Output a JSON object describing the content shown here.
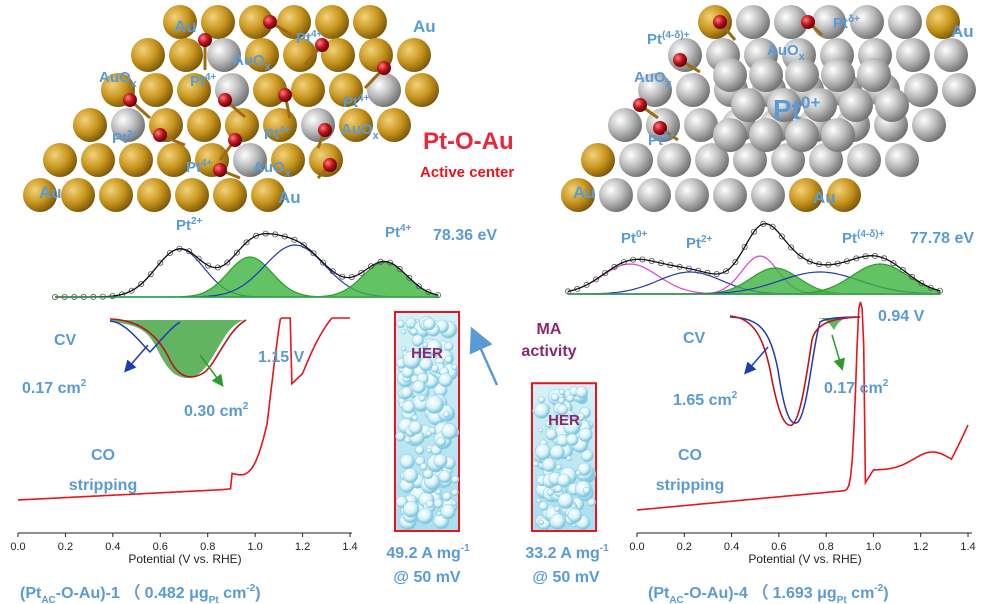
{
  "colors": {
    "gold": "#c8961e",
    "silver": "#b7b7b7",
    "oxygen": "#c0141c",
    "label_blue": "#5b9bd5",
    "accent_red": "#e8283c",
    "fit_green": "#2e9a2e",
    "fit_blue": "#1f3ab5",
    "fit_magenta": "#e040d0",
    "curve_red": "#e8141c"
  },
  "left": {
    "ions": {
      "au_tl": "Au",
      "au_tr": "Au",
      "au_bl": "Au",
      "au_bm": "Au",
      "pt4_a": "Pt",
      "pt4_a_sup": "4+",
      "pt4_b": "Pt",
      "pt4_b_sup": "4+",
      "pt4_c": "Pt",
      "pt4_c_sup": "4+",
      "pt4_d": "Pt",
      "pt4_d_sup": "4+",
      "pt4_e": "Pt",
      "pt4_e_sup": "4+",
      "pt2_a": "Pt",
      "pt2_a_sup": "2+",
      "auox_a": "AuO",
      "auox_a_sub": "x",
      "auox_b": "AuO",
      "auox_b_sub": "x",
      "auox_c": "AuO",
      "auox_c_sub": "x",
      "auox_d": "AuO",
      "auox_d_sub": "x"
    },
    "title": "Pt-O-Au",
    "subtitle": "Active center",
    "xps": {
      "pt2": "Pt",
      "pt2_sup": "2+",
      "pt4": "Pt",
      "pt4_sup": "4+",
      "energy": "78.36 eV"
    },
    "cv": {
      "label": "CV",
      "area1": "0.17 cm",
      "area1_sup": "2",
      "area2": "0.30 cm",
      "area2_sup": "2",
      "peak": "1.15 V"
    },
    "co": {
      "line1": "CO",
      "line2": "stripping"
    },
    "axis": {
      "ticks": [
        "0.0",
        "0.2",
        "0.4",
        "0.6",
        "0.8",
        "1.0",
        "1.2",
        "1.4"
      ],
      "label": "Potential (V vs. RHE)"
    },
    "caption": {
      "open": "(Pt",
      "sub": "AC",
      "mid": "-O-Au)-1 （ 0.482 μg",
      "sub2": "Pt",
      "tail": " cm",
      "sup": "-2",
      "close": ")"
    }
  },
  "center": {
    "bar1_label": "HER",
    "bar2_label": "HER",
    "ma_line1": "MA",
    "ma_line2": "activity",
    "val1": "49.2 A mg",
    "val1_sup": "-1",
    "val1_sub": "@ 50 mV",
    "val2": "33.2 A mg",
    "val2_sup": "-1",
    "val2_sub": "@ 50 mV",
    "bar_values": [
      49.2,
      33.2
    ]
  },
  "right": {
    "ions": {
      "au_tr": "Au",
      "au_bl": "Au",
      "au_bm": "Au",
      "pt_d_a": "Pt",
      "pt_d_a_sup": "(4-δ)+",
      "pt_d_b": "Pt",
      "pt_d_b_sup": "δ+",
      "pt_d_c": "Pt",
      "pt_d_c_sup": "δ+",
      "pt0": "Pt",
      "pt0_sup": "0+",
      "auox_a": "AuO",
      "auox_a_sub": "x",
      "auox_b": "AuO",
      "auox_b_sub": "x"
    },
    "xps": {
      "pt0": "Pt",
      "pt0_sup": "0+",
      "pt2": "Pt",
      "pt2_sup": "2+",
      "ptd": "Pt",
      "ptd_sup": "(4-δ)+",
      "energy": "77.78 eV"
    },
    "cv": {
      "label": "CV",
      "area1": "1.65 cm",
      "area1_sup": "2",
      "area2": "0.17 cm",
      "area2_sup": "2",
      "peak": "0.94 V"
    },
    "co": {
      "line1": "CO",
      "line2": "stripping"
    },
    "axis": {
      "ticks": [
        "0.0",
        "0.2",
        "0.4",
        "0.6",
        "0.8",
        "1.0",
        "1.2",
        "1.4"
      ],
      "label": "Potential (V vs. RHE)"
    },
    "caption": {
      "open": "(Pt",
      "sub": "AC",
      "mid": "-O-Au)-4 （ 1.693 μg",
      "sub2": "Pt",
      "tail": " cm",
      "sup": "-2",
      "close": ")"
    }
  }
}
